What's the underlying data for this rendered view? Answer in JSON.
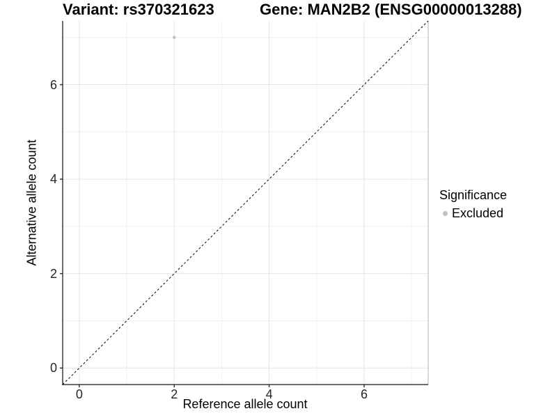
{
  "titles": {
    "left": "Variant: rs370321623",
    "right": "Gene: MAN2B2 (ENSG00000013288)"
  },
  "legend": {
    "title": "Significance",
    "items": [
      {
        "label": "Excluded",
        "color": "#bfbfbf"
      }
    ]
  },
  "chart_data": {
    "type": "scatter",
    "title": "Variant: rs370321623 — Gene: MAN2B2 (ENSG00000013288)",
    "xlabel": "Reference allele count",
    "ylabel": "Alternative allele count",
    "xlim": [
      -0.35,
      7.35
    ],
    "ylim": [
      -0.35,
      7.35
    ],
    "x_major_ticks": [
      0,
      2,
      4,
      6
    ],
    "y_major_ticks": [
      0,
      2,
      4,
      6
    ],
    "x_minor_ticks": [
      1,
      3,
      5,
      7
    ],
    "y_minor_ticks": [
      1,
      3,
      5,
      7
    ],
    "grid": "major+minor",
    "legend_position": "right",
    "reference_line": {
      "type": "identity",
      "slope": 1,
      "intercept": 0,
      "style": "dashed",
      "color": "#000000"
    },
    "series": [
      {
        "name": "Excluded",
        "color": "#bfbfbf",
        "marker": "circle",
        "marker_radius": 2.2,
        "points": [
          {
            "x": 2,
            "y": 7
          }
        ]
      }
    ]
  },
  "colors": {
    "background": "#ffffff",
    "grid_major": "#e4e4e4",
    "grid_minor": "#f0f0f0",
    "axis_line": "#3a3a3a",
    "panel_border_right": "#b3b3b3",
    "tick_text": "#262626",
    "reference_line": "#000000",
    "excluded_point": "#bfbfbf"
  }
}
